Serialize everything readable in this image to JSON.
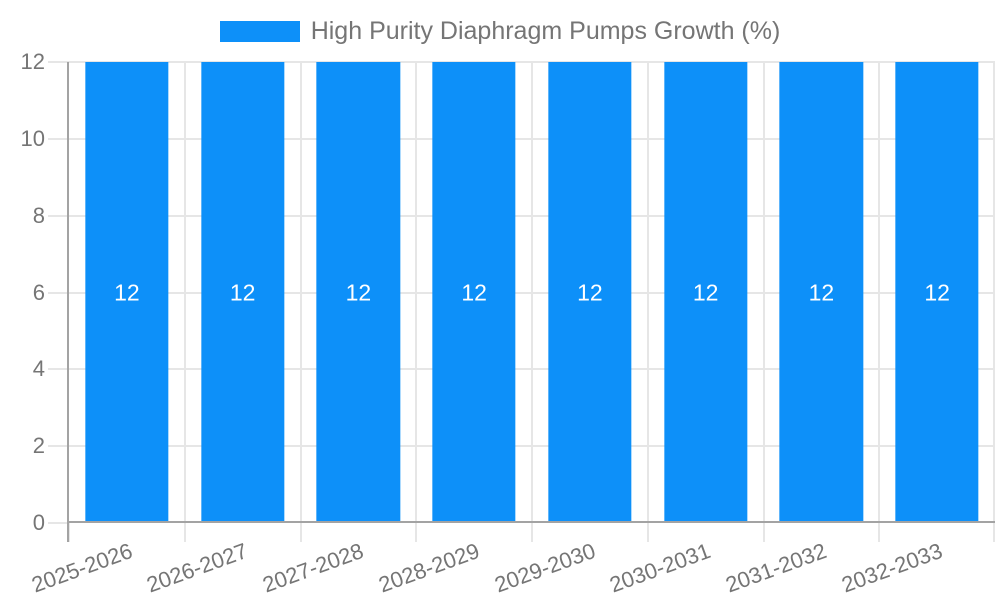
{
  "legend": {
    "label": "High Purity Diaphragm Pumps Growth (%)"
  },
  "chart_data": {
    "type": "bar",
    "title": "High Purity Diaphragm Pumps Growth (%)",
    "categories": [
      "2025-2026",
      "2026-2027",
      "2027-2028",
      "2028-2029",
      "2029-2030",
      "2030-2031",
      "2031-2032",
      "2032-2033"
    ],
    "series": [
      {
        "name": "High Purity Diaphragm Pumps Growth (%)",
        "values": [
          12,
          12,
          12,
          12,
          12,
          12,
          12,
          12
        ]
      }
    ],
    "xlabel": "",
    "ylabel": "",
    "ylim": [
      0,
      12
    ],
    "yticks": [
      0,
      2,
      4,
      6,
      8,
      10,
      12
    ],
    "grid": true,
    "legend_position": "top-center",
    "x_label_rotation_deg": -20,
    "bar_value_labels_shown": true,
    "colors": {
      "bar": "#0d90f9",
      "grid": "#e6e6e6",
      "axis": "#a3a3a3",
      "tick_text": "#757575",
      "legend_text": "#757575",
      "bar_label": "#ffffff",
      "background": "#ffffff"
    }
  }
}
